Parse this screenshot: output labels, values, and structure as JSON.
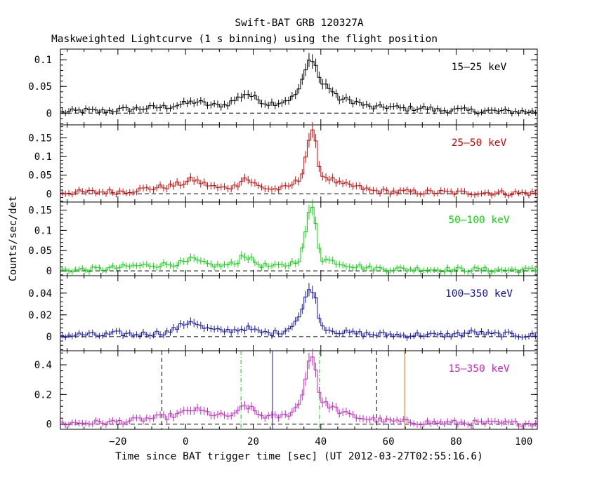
{
  "chart_data": {
    "type": "line",
    "title": "Swift-BAT GRB 120327A",
    "subtitle": "Maskweighted Lightcurve (1 s binning) using the flight position",
    "xlabel": "Time since BAT trigger time [sec] (UT 2012-03-27T02:55:16.6)",
    "ylabel": "Counts/sec/det",
    "xlim": [
      -37,
      104
    ],
    "x_ticks": [
      -20,
      0,
      20,
      40,
      60,
      80,
      100
    ],
    "panels": [
      {
        "name": "15–25 keV",
        "color": "#000000",
        "ylim": [
          -0.022,
          0.12
        ],
        "y_ticks": [
          0,
          0.05,
          0.1
        ],
        "y_tick_labels": [
          "0",
          "0.05",
          "0.1"
        ],
        "points": [
          [
            -35,
            0.002
          ],
          [
            -30,
            0.005
          ],
          [
            -25,
            0.003
          ],
          [
            -20,
            0.006
          ],
          [
            -15,
            0.008
          ],
          [
            -10,
            0.01
          ],
          [
            -5,
            0.012
          ],
          [
            0,
            0.018
          ],
          [
            3,
            0.022
          ],
          [
            8,
            0.014
          ],
          [
            12,
            0.016
          ],
          [
            16,
            0.03
          ],
          [
            18,
            0.038
          ],
          [
            20,
            0.03
          ],
          [
            24,
            0.018
          ],
          [
            28,
            0.02
          ],
          [
            32,
            0.03
          ],
          [
            34,
            0.05
          ],
          [
            36,
            0.09
          ],
          [
            37,
            0.105
          ],
          [
            38,
            0.098
          ],
          [
            39,
            0.08
          ],
          [
            40,
            0.055
          ],
          [
            42,
            0.052
          ],
          [
            45,
            0.028
          ],
          [
            50,
            0.022
          ],
          [
            55,
            0.01
          ],
          [
            60,
            0.012
          ],
          [
            65,
            0.008
          ],
          [
            70,
            0.01
          ],
          [
            75,
            0.005
          ],
          [
            80,
            0.006
          ],
          [
            85,
            0.004
          ],
          [
            90,
            0.004
          ],
          [
            95,
            0.003
          ],
          [
            100,
            0.003
          ],
          [
            104,
            0.002
          ]
        ]
      },
      {
        "name": "25–50 keV",
        "color": "#e00000",
        "ylim": [
          -0.022,
          0.185
        ],
        "y_ticks": [
          0,
          0.05,
          0.1,
          0.15
        ],
        "y_tick_labels": [
          "0",
          "0.05",
          "0.1",
          "0.15"
        ],
        "points": [
          [
            -35,
            0.004
          ],
          [
            -30,
            0.004
          ],
          [
            -25,
            0.005
          ],
          [
            -20,
            0.006
          ],
          [
            -15,
            0.01
          ],
          [
            -10,
            0.015
          ],
          [
            -5,
            0.02
          ],
          [
            0,
            0.03
          ],
          [
            2,
            0.04
          ],
          [
            5,
            0.028
          ],
          [
            10,
            0.015
          ],
          [
            15,
            0.02
          ],
          [
            17,
            0.045
          ],
          [
            19,
            0.035
          ],
          [
            22,
            0.018
          ],
          [
            26,
            0.012
          ],
          [
            30,
            0.016
          ],
          [
            34,
            0.04
          ],
          [
            36,
            0.12
          ],
          [
            37,
            0.17
          ],
          [
            38,
            0.16
          ],
          [
            39,
            0.11
          ],
          [
            40,
            0.05
          ],
          [
            43,
            0.04
          ],
          [
            46,
            0.025
          ],
          [
            50,
            0.02
          ],
          [
            55,
            0.008
          ],
          [
            60,
            0.006
          ],
          [
            65,
            0.005
          ],
          [
            70,
            0.004
          ],
          [
            75,
            0.004
          ],
          [
            80,
            0.003
          ],
          [
            85,
            0.003
          ],
          [
            90,
            0.003
          ],
          [
            95,
            0.002
          ],
          [
            100,
            0.002
          ],
          [
            104,
            0.002
          ]
        ]
      },
      {
        "name": "50–100 keV",
        "color": "#00dd00",
        "ylim": [
          -0.012,
          0.17
        ],
        "y_ticks": [
          0,
          0.05,
          0.1,
          0.15
        ],
        "y_tick_labels": [
          "0",
          "0.05",
          "0.1",
          "0.15"
        ],
        "points": [
          [
            -35,
            0.002
          ],
          [
            -30,
            0.003
          ],
          [
            -25,
            0.004
          ],
          [
            -20,
            0.008
          ],
          [
            -15,
            0.012
          ],
          [
            -10,
            0.014
          ],
          [
            -5,
            0.016
          ],
          [
            0,
            0.02
          ],
          [
            2,
            0.03
          ],
          [
            5,
            0.018
          ],
          [
            10,
            0.012
          ],
          [
            15,
            0.018
          ],
          [
            17,
            0.042
          ],
          [
            19,
            0.03
          ],
          [
            22,
            0.014
          ],
          [
            26,
            0.01
          ],
          [
            30,
            0.014
          ],
          [
            34,
            0.03
          ],
          [
            36,
            0.12
          ],
          [
            37,
            0.16
          ],
          [
            38,
            0.15
          ],
          [
            39,
            0.09
          ],
          [
            40,
            0.03
          ],
          [
            43,
            0.025
          ],
          [
            46,
            0.018
          ],
          [
            50,
            0.012
          ],
          [
            55,
            0.006
          ],
          [
            60,
            0.005
          ],
          [
            65,
            0.004
          ],
          [
            70,
            0.004
          ],
          [
            75,
            0.003
          ],
          [
            80,
            0.003
          ],
          [
            85,
            0.003
          ],
          [
            90,
            0.002
          ],
          [
            95,
            0.002
          ],
          [
            100,
            0.002
          ],
          [
            104,
            0.002
          ]
        ]
      },
      {
        "name": "100–350 keV",
        "color": "#1010c0",
        "ylim": [
          -0.013,
          0.056
        ],
        "y_ticks": [
          0,
          0.02,
          0.04
        ],
        "y_tick_labels": [
          "0",
          "0.02",
          "0.04"
        ],
        "points": [
          [
            -35,
            0.001
          ],
          [
            -30,
            0.002
          ],
          [
            -25,
            0.001
          ],
          [
            -20,
            0.003
          ],
          [
            -15,
            0.002
          ],
          [
            -10,
            0.003
          ],
          [
            -5,
            0.004
          ],
          [
            0,
            0.012
          ],
          [
            2,
            0.015
          ],
          [
            5,
            0.008
          ],
          [
            10,
            0.005
          ],
          [
            15,
            0.006
          ],
          [
            18,
            0.008
          ],
          [
            22,
            0.004
          ],
          [
            26,
            0.003
          ],
          [
            30,
            0.006
          ],
          [
            34,
            0.02
          ],
          [
            36,
            0.04
          ],
          [
            37,
            0.046
          ],
          [
            38,
            0.04
          ],
          [
            39,
            0.028
          ],
          [
            40,
            0.01
          ],
          [
            43,
            0.006
          ],
          [
            46,
            0.004
          ],
          [
            50,
            0.003
          ],
          [
            55,
            0.002
          ],
          [
            60,
            0.002
          ],
          [
            65,
            0.001
          ],
          [
            70,
            0.002
          ],
          [
            75,
            0.001
          ],
          [
            80,
            0.002
          ],
          [
            85,
            0.004
          ],
          [
            90,
            0.002
          ],
          [
            95,
            0.002
          ],
          [
            100,
            0.001
          ],
          [
            104,
            0.001
          ]
        ]
      },
      {
        "name": "15–350 keV",
        "color": "#d020d0",
        "ylim": [
          -0.035,
          0.495
        ],
        "y_ticks": [
          0,
          0.2,
          0.4
        ],
        "y_tick_labels": [
          "0",
          "0.2",
          "0.4"
        ],
        "points": [
          [
            -35,
            0.005
          ],
          [
            -30,
            0.01
          ],
          [
            -25,
            0.01
          ],
          [
            -20,
            0.015
          ],
          [
            -15,
            0.025
          ],
          [
            -10,
            0.04
          ],
          [
            -5,
            0.05
          ],
          [
            0,
            0.08
          ],
          [
            2,
            0.1
          ],
          [
            5,
            0.085
          ],
          [
            10,
            0.055
          ],
          [
            15,
            0.06
          ],
          [
            17,
            0.13
          ],
          [
            19,
            0.11
          ],
          [
            22,
            0.06
          ],
          [
            26,
            0.045
          ],
          [
            30,
            0.06
          ],
          [
            34,
            0.14
          ],
          [
            36,
            0.38
          ],
          [
            37,
            0.47
          ],
          [
            38,
            0.44
          ],
          [
            39,
            0.3
          ],
          [
            40,
            0.15
          ],
          [
            43,
            0.12
          ],
          [
            46,
            0.08
          ],
          [
            50,
            0.05
          ],
          [
            55,
            0.03
          ],
          [
            60,
            0.02
          ],
          [
            65,
            0.015
          ],
          [
            70,
            0.012
          ],
          [
            75,
            0.01
          ],
          [
            80,
            0.008
          ],
          [
            85,
            0.008
          ],
          [
            90,
            0.006
          ],
          [
            95,
            0.006
          ],
          [
            100,
            0.005
          ],
          [
            104,
            0.004
          ]
        ]
      }
    ],
    "markers": [
      {
        "x": -7.0,
        "color": "#000000",
        "style": "dashed"
      },
      {
        "x": 16.4,
        "color": "#00cc00",
        "style": "dashdot"
      },
      {
        "x": 25.7,
        "color": "#1010c0",
        "style": "solid"
      },
      {
        "x": 39.6,
        "color": "#00cc00",
        "style": "dashdot"
      },
      {
        "x": 56.5,
        "color": "#000000",
        "style": "dashed"
      },
      {
        "x": 64.8,
        "color": "#e07000",
        "style": "solid"
      }
    ]
  }
}
